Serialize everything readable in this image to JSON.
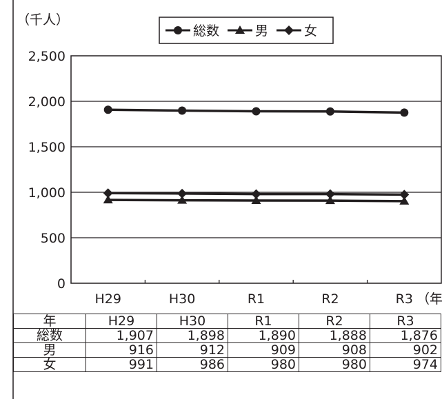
{
  "chart_data": {
    "type": "line",
    "unit_label": "（千人）",
    "x_unit_label": "（年）",
    "categories": [
      "H29",
      "H30",
      "R1",
      "R2",
      "R3"
    ],
    "ylim": [
      0,
      2500
    ],
    "yticks": [
      0,
      500,
      1000,
      1500,
      2000,
      2500
    ],
    "ytick_labels": [
      "0",
      "500",
      "1,000",
      "1,500",
      "2,000",
      "2,500"
    ],
    "grid": true,
    "legend_position": "top-center",
    "series": [
      {
        "name": "総数",
        "marker": "circle",
        "values": [
          1907,
          1898,
          1890,
          1888,
          1876
        ]
      },
      {
        "name": "男",
        "marker": "triangle",
        "values": [
          916,
          912,
          909,
          908,
          902
        ]
      },
      {
        "name": "女",
        "marker": "diamond",
        "values": [
          991,
          986,
          980,
          980,
          974
        ]
      }
    ],
    "line_color": "#231f20"
  },
  "table": {
    "header_label": "年",
    "columns": [
      "H29",
      "H30",
      "R1",
      "R2",
      "R3"
    ],
    "rows": [
      {
        "label": "総数",
        "cells": [
          "1,907",
          "1,898",
          "1,890",
          "1,888",
          "1,876"
        ]
      },
      {
        "label": "男",
        "cells": [
          "916",
          "912",
          "909",
          "908",
          "902"
        ]
      },
      {
        "label": "女",
        "cells": [
          "991",
          "986",
          "980",
          "980",
          "974"
        ]
      }
    ]
  }
}
